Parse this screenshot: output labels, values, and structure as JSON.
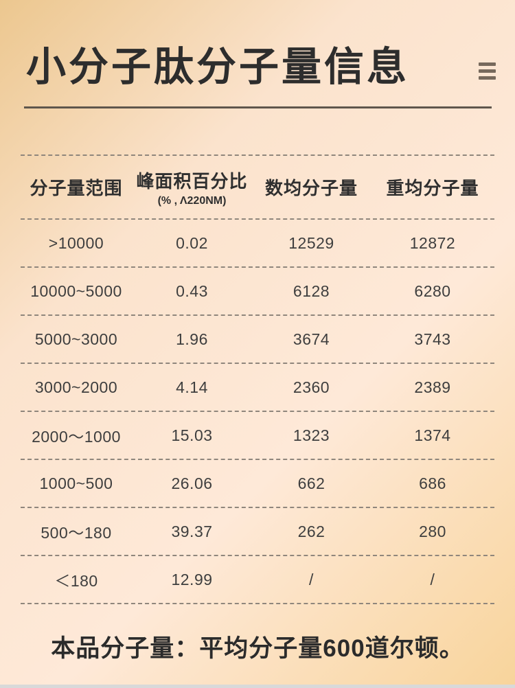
{
  "header": {
    "title": "小分子肽分子量信息"
  },
  "icons": {
    "menu": "hamburger-menu-icon"
  },
  "colors": {
    "background_gold": "#ecc78f",
    "background_cream": "#fee9d8",
    "title_text": "#2d2d2d",
    "divider_solid": "#5f564c",
    "divider_dashed": "#8f867c",
    "menu_icon": "#77695c",
    "bottom_strip": "#d9d9d9"
  },
  "table": {
    "columns": [
      {
        "label": "分子量范围",
        "sub": ""
      },
      {
        "label": "峰面积百分比",
        "sub": "(% , Λ220NM)"
      },
      {
        "label": "数均分子量",
        "sub": ""
      },
      {
        "label": "重均分子量",
        "sub": ""
      }
    ],
    "rows": [
      [
        ">10000",
        "0.02",
        "12529",
        "12872"
      ],
      [
        "10000~5000",
        "0.43",
        "6128",
        "6280"
      ],
      [
        "5000~3000",
        "1.96",
        "3674",
        "3743"
      ],
      [
        "3000~2000",
        "4.14",
        "2360",
        "2389"
      ],
      [
        "2000～1000",
        "15.03",
        "1323",
        "1374"
      ],
      [
        "1000~500",
        "26.06",
        "662",
        "686"
      ],
      [
        "500～180",
        "39.37",
        "262",
        "280"
      ],
      [
        "＜180",
        "12.99",
        "/",
        "/"
      ]
    ]
  },
  "footer": {
    "note": "本品分子量：平均分子量600道尔顿。"
  },
  "chart_data": {
    "type": "table",
    "title": "小分子肽分子量信息",
    "columns": [
      "分子量范围",
      "峰面积百分比 (% , Λ220NM)",
      "数均分子量",
      "重均分子量"
    ],
    "rows": [
      [
        ">10000",
        "0.02",
        "12529",
        "12872"
      ],
      [
        "10000~5000",
        "0.43",
        "6128",
        "6280"
      ],
      [
        "5000~3000",
        "1.96",
        "3674",
        "3743"
      ],
      [
        "3000~2000",
        "4.14",
        "2360",
        "2389"
      ],
      [
        "2000～1000",
        "15.03",
        "1323",
        "1374"
      ],
      [
        "1000~500",
        "26.06",
        "662",
        "686"
      ],
      [
        "500～180",
        "39.37",
        "262",
        "280"
      ],
      [
        "＜180",
        "12.99",
        "/",
        "/"
      ]
    ],
    "note": "本品分子量：平均分子量600道尔顿。"
  }
}
